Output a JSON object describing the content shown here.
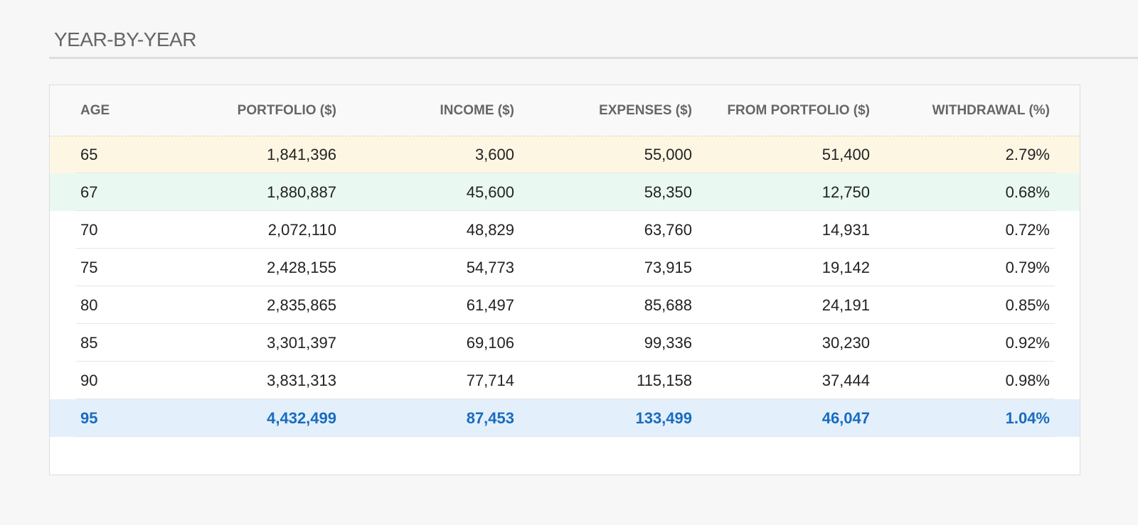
{
  "header": {
    "title": "YEAR-BY-YEAR"
  },
  "table": {
    "columns": [
      "AGE",
      "PORTFOLIO ($)",
      "INCOME ($)",
      "EXPENSES ($)",
      "FROM PORTFOLIO ($)",
      "WITHDRAWAL (%)"
    ],
    "rows": [
      [
        "65",
        "1,841,396",
        "3,600",
        "55,000",
        "51,400",
        "2.79%"
      ],
      [
        "67",
        "1,880,887",
        "45,600",
        "58,350",
        "12,750",
        "0.68%"
      ],
      [
        "70",
        "2,072,110",
        "48,829",
        "63,760",
        "14,931",
        "0.72%"
      ],
      [
        "75",
        "2,428,155",
        "54,773",
        "73,915",
        "19,142",
        "0.79%"
      ],
      [
        "80",
        "2,835,865",
        "61,497",
        "85,688",
        "24,191",
        "0.85%"
      ],
      [
        "85",
        "3,301,397",
        "69,106",
        "99,336",
        "30,230",
        "0.92%"
      ],
      [
        "90",
        "3,831,313",
        "77,714",
        "115,158",
        "37,444",
        "0.98%"
      ],
      [
        "95",
        "4,432,499",
        "87,453",
        "133,499",
        "46,047",
        "1.04%"
      ]
    ]
  }
}
